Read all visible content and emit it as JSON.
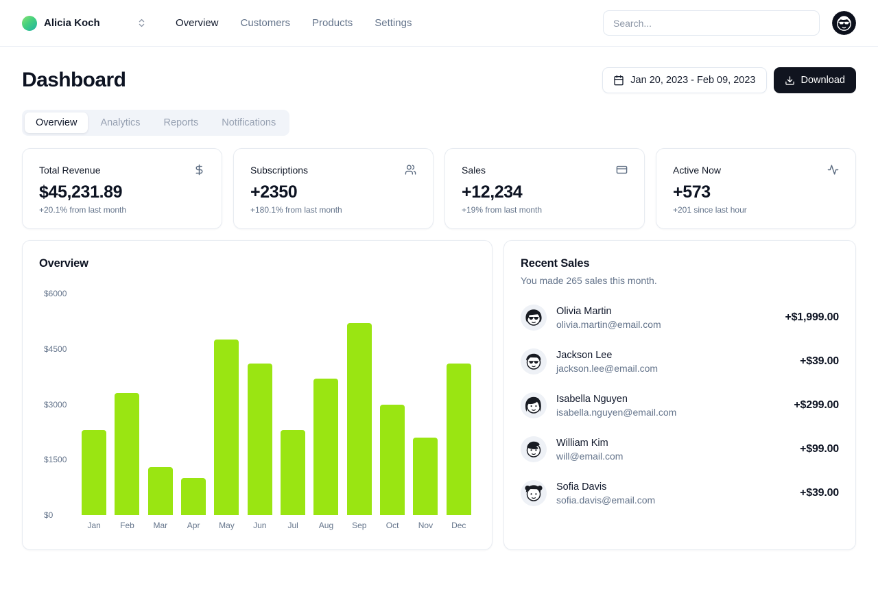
{
  "header": {
    "team": {
      "name": "Alicia Koch"
    },
    "nav": [
      {
        "label": "Overview",
        "active": true
      },
      {
        "label": "Customers"
      },
      {
        "label": "Products"
      },
      {
        "label": "Settings"
      }
    ],
    "search": {
      "placeholder": "Search..."
    }
  },
  "page": {
    "title": "Dashboard",
    "date_range": "Jan 20, 2023 - Feb 09, 2023",
    "download_label": "Download",
    "tabs": [
      {
        "label": "Overview",
        "active": true
      },
      {
        "label": "Analytics"
      },
      {
        "label": "Reports"
      },
      {
        "label": "Notifications"
      }
    ]
  },
  "stat_cards": [
    {
      "title": "Total Revenue",
      "icon": "dollar-sign-icon",
      "icon_ref": "#icon-dollar",
      "value": "$45,231.89",
      "change": "+20.1% from last month"
    },
    {
      "title": "Subscriptions",
      "icon": "users-icon",
      "icon_ref": "#icon-users",
      "value": "+2350",
      "change": "+180.1% from last month"
    },
    {
      "title": "Sales",
      "icon": "credit-card-icon",
      "icon_ref": "#icon-credit-card",
      "value": "+12,234",
      "change": "+19% from last month"
    },
    {
      "title": "Active Now",
      "icon": "activity-icon",
      "icon_ref": "#icon-activity",
      "value": "+573",
      "change": "+201 since last hour"
    }
  ],
  "chart_card": {
    "title": "Overview"
  },
  "chart_data": {
    "type": "bar",
    "title": "Overview",
    "categories": [
      "Jan",
      "Feb",
      "Mar",
      "Apr",
      "May",
      "Jun",
      "Jul",
      "Aug",
      "Sep",
      "Oct",
      "Nov",
      "Dec"
    ],
    "values": [
      2300,
      3300,
      1300,
      1000,
      4750,
      4100,
      2300,
      3700,
      5200,
      3000,
      2100,
      4100
    ],
    "xlabel": "",
    "ylabel": "",
    "ylim": [
      0,
      6000
    ],
    "yticks": [
      0,
      1500,
      3000,
      4500,
      6000
    ],
    "ytick_labels": [
      "$0",
      "$1500",
      "$3000",
      "$4500",
      "$6000"
    ],
    "bar_color": "#9ae512",
    "grid": false,
    "legend": false
  },
  "recent_sales": {
    "title": "Recent Sales",
    "subtitle": "You made 265 sales this month.",
    "items": [
      {
        "name": "Olivia Martin",
        "email": "olivia.martin@email.com",
        "amount": "+$1,999.00",
        "avatar_icon": "avatar-olivia-icon",
        "avatar_ref": "#face-shades-f"
      },
      {
        "name": "Jackson Lee",
        "email": "jackson.lee@email.com",
        "amount": "+$39.00",
        "avatar_icon": "avatar-jackson-icon",
        "avatar_ref": "#face-shades-m"
      },
      {
        "name": "Isabella Nguyen",
        "email": "isabella.nguyen@email.com",
        "amount": "+$299.00",
        "avatar_icon": "avatar-isabella-icon",
        "avatar_ref": "#face-plain-f"
      },
      {
        "name": "William Kim",
        "email": "will@email.com",
        "amount": "+$99.00",
        "avatar_icon": "avatar-william-icon",
        "avatar_ref": "#face-plain-m"
      },
      {
        "name": "Sofia Davis",
        "email": "sofia.davis@email.com",
        "amount": "+$39.00",
        "avatar_icon": "avatar-sofia-icon",
        "avatar_ref": "#face-buns-f"
      }
    ]
  },
  "colors": {
    "bar_green": "#9ae512",
    "primary_dark": "#10141f",
    "muted_text": "#64748b",
    "border": "#e7ebf1",
    "tab_bg": "#f1f4f9"
  }
}
